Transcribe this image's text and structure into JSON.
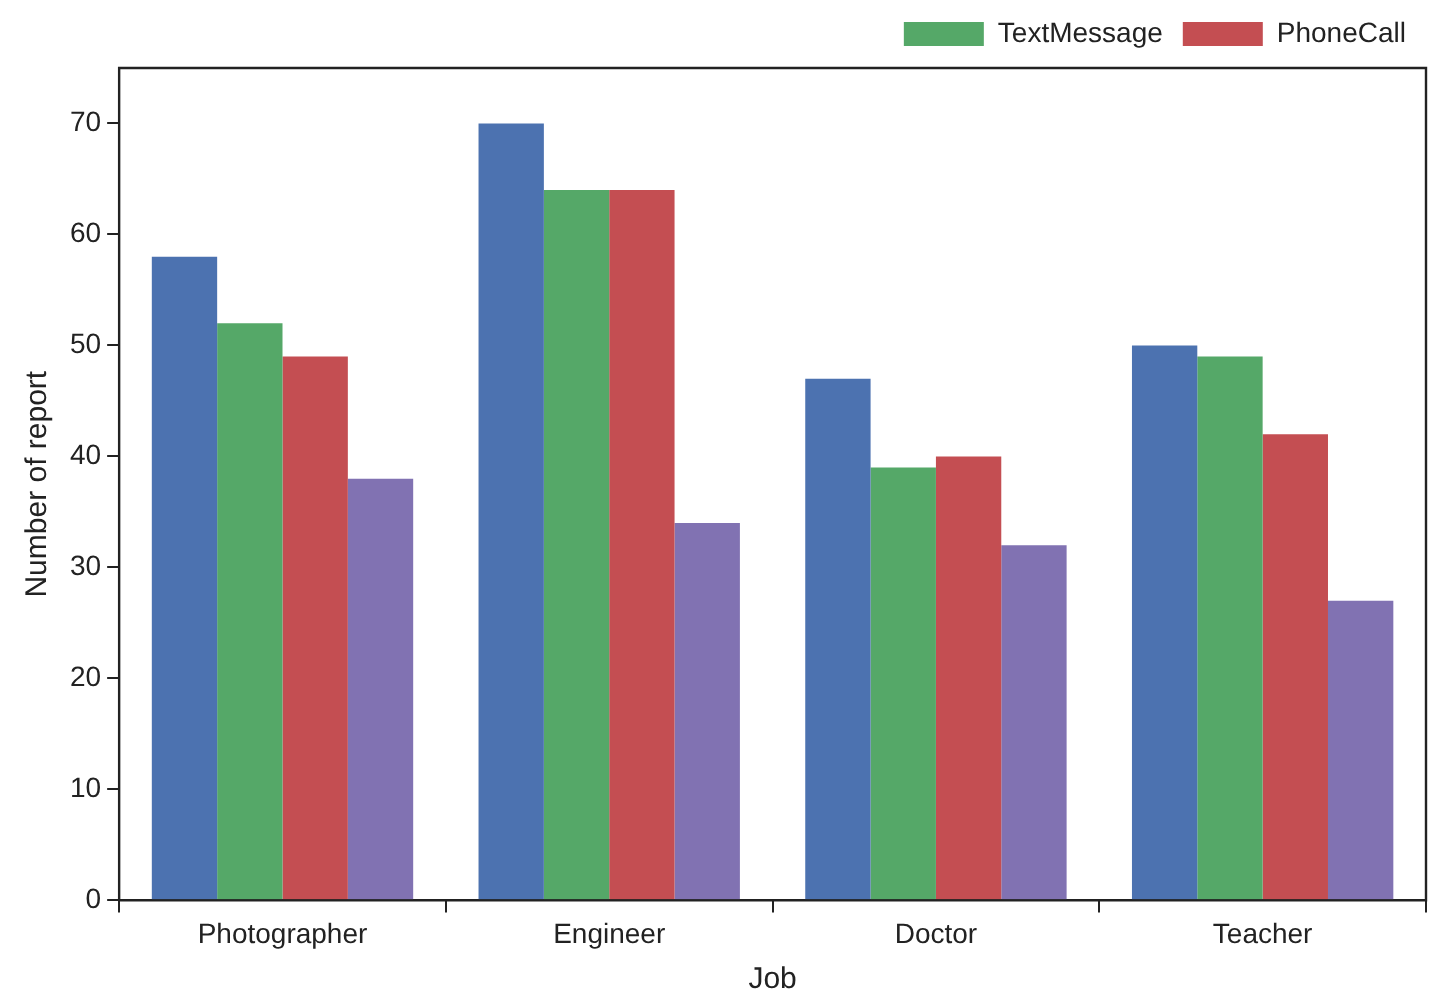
{
  "chart_data": {
    "type": "bar",
    "xlabel": "Job",
    "ylabel": "Number of report",
    "categories": [
      "Photographer",
      "Engineer",
      "Doctor",
      "Teacher"
    ],
    "series": [
      {
        "color": "#4c72b0",
        "values": [
          58,
          70,
          47,
          50
        ]
      },
      {
        "name": "TextMessage",
        "color": "#55a868",
        "values": [
          52,
          64,
          39,
          49
        ]
      },
      {
        "name": "PhoneCall",
        "color": "#c44e52",
        "values": [
          49,
          64,
          40,
          42
        ]
      },
      {
        "color": "#8172b2",
        "values": [
          38,
          34,
          32,
          27
        ]
      }
    ],
    "ylim": [
      0,
      75
    ],
    "yticks": [
      0,
      10,
      20,
      30,
      40,
      50,
      60,
      70
    ],
    "grid": false,
    "legend": "top"
  }
}
